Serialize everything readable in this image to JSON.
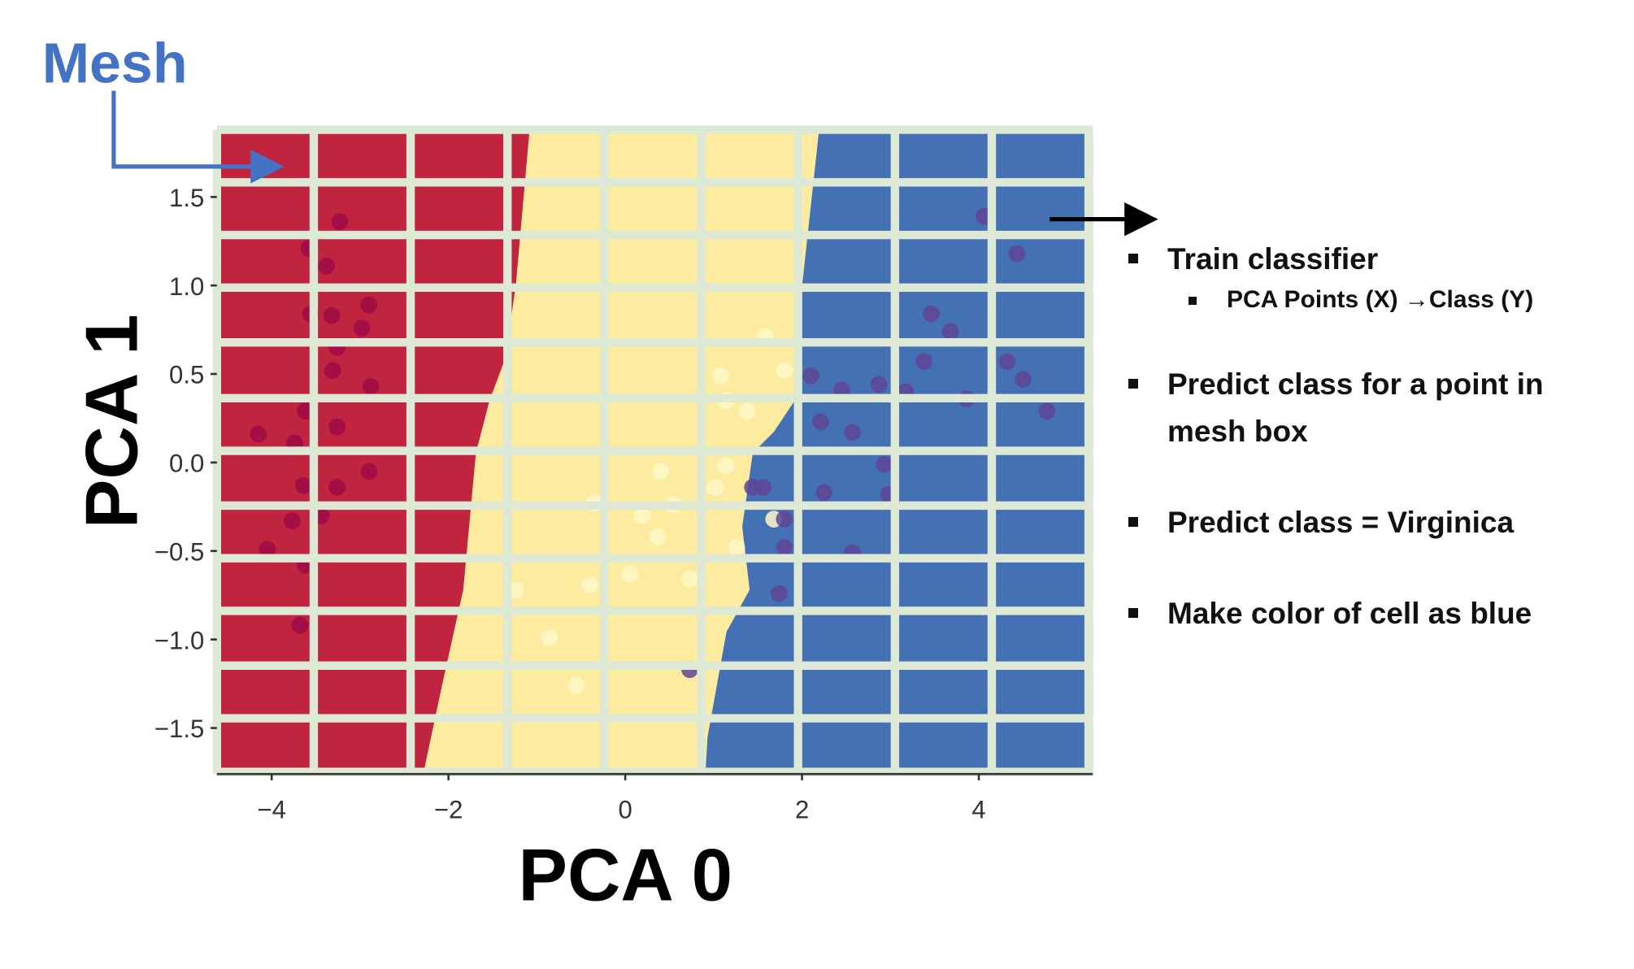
{
  "chart_data": {
    "type": "scatter",
    "annotation": "Mesh",
    "xlabel": "PCA 0",
    "ylabel": "PCA 1",
    "xlim": [
      -4.62,
      5.29
    ],
    "ylim": [
      -1.76,
      1.88
    ],
    "xticks": [
      {
        "value": -4,
        "label": "−4"
      },
      {
        "value": -2,
        "label": "−2"
      },
      0,
      2,
      4
    ],
    "yticks": [
      1.5,
      {
        "value": 1,
        "label": "1.0"
      },
      0.5,
      {
        "value": 0,
        "label": "0.0"
      },
      {
        "value": -0.5,
        "label": "−0.5"
      },
      {
        "value": -1,
        "label": "−1.0"
      },
      {
        "value": -1.5,
        "label": "−1.5"
      }
    ],
    "series": [
      {
        "color": "#9e0a45",
        "x": [
          -3.23,
          -3.58,
          -3.38,
          -3.56,
          -3.32,
          -2.9,
          -2.98,
          -3.26,
          -3.31,
          -2.88,
          -3.62,
          -3.26,
          -4.15,
          -3.74,
          -2.9,
          -3.26,
          -3.64,
          -3.77,
          -4.05,
          -3.62,
          -3.68,
          -3.44
        ],
        "y": [
          1.36,
          1.21,
          1.11,
          0.84,
          0.83,
          0.89,
          0.76,
          0.65,
          0.52,
          0.43,
          0.29,
          0.2,
          0.16,
          0.11,
          -0.05,
          -0.14,
          -0.13,
          -0.33,
          -0.49,
          -0.58,
          -0.92,
          -0.3
        ]
      },
      {
        "color": "#fff8c8",
        "x": [
          1.08,
          1.58,
          1.8,
          1.38,
          1.14,
          0.4,
          1.02,
          1.14,
          0.55,
          0.19,
          -0.35,
          0.37,
          0.05,
          -0.4,
          0.73,
          -1.24,
          -0.86,
          -0.55,
          1.68,
          1.26
        ],
        "y": [
          0.49,
          0.71,
          0.52,
          0.29,
          0.35,
          -0.05,
          -0.14,
          -0.02,
          -0.24,
          -0.3,
          -0.23,
          -0.42,
          -0.63,
          -0.69,
          -0.66,
          -0.72,
          -0.99,
          -1.26,
          -0.32,
          -0.48
        ]
      },
      {
        "color": "#5e4596",
        "x": [
          0.73,
          1.44,
          1.8,
          1.8,
          1.74,
          2.1,
          2.21,
          2.57,
          2.93,
          2.45,
          2.87,
          3.17,
          3.38,
          3.46,
          3.68,
          3.86,
          4.06,
          4.43,
          4.32,
          4.5,
          4.77,
          2.57,
          2.25,
          2.98,
          1.56
        ],
        "y": [
          -1.17,
          -0.14,
          -0.32,
          -0.48,
          -0.74,
          0.49,
          0.23,
          0.17,
          -0.01,
          0.41,
          0.44,
          0.4,
          0.57,
          0.84,
          0.74,
          0.36,
          1.39,
          1.18,
          0.57,
          0.47,
          0.29,
          -0.51,
          -0.17,
          -0.18,
          -0.14
        ]
      }
    ],
    "notes": [
      {
        "text": "Train classifier",
        "sub": [
          "PCA Points (X) →Class (Y)"
        ]
      },
      {
        "text": "Predict class for a point in mesh box"
      },
      {
        "text": "Predict class = Virginica"
      },
      {
        "text": "Make color of cell as blue"
      }
    ]
  }
}
